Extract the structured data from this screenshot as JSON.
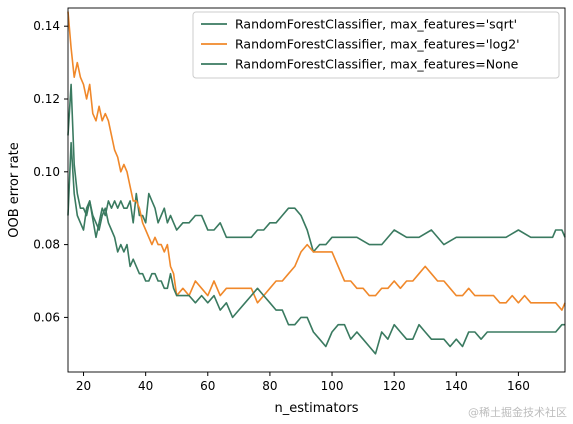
{
  "chart_data": {
    "type": "line",
    "xlabel": "n_estimators",
    "ylabel": "OOB error rate",
    "xlim": [
      15,
      175
    ],
    "ylim": [
      0.045,
      0.145
    ],
    "xticks": [
      20,
      40,
      60,
      80,
      100,
      120,
      140,
      160
    ],
    "yticks": [
      0.06,
      0.08,
      0.1,
      0.12,
      0.14
    ],
    "ytick_labels": [
      "0.06",
      "0.08",
      "0.10",
      "0.12",
      "0.14"
    ],
    "grid": false,
    "legend_position": "top-right",
    "series": [
      {
        "name": "RandomForestClassifier, max_features='sqrt'",
        "color": "#3a7a60",
        "x": [
          15,
          16,
          17,
          18,
          19,
          20,
          21,
          22,
          23,
          24,
          25,
          26,
          27,
          28,
          29,
          30,
          31,
          32,
          33,
          34,
          35,
          36,
          37,
          38,
          39,
          40,
          41,
          42,
          43,
          44,
          45,
          46,
          47,
          48,
          49,
          50,
          52,
          54,
          56,
          58,
          60,
          62,
          64,
          66,
          68,
          70,
          72,
          74,
          76,
          78,
          80,
          82,
          84,
          86,
          88,
          90,
          92,
          94,
          96,
          98,
          100,
          104,
          108,
          112,
          116,
          120,
          124,
          128,
          132,
          136,
          140,
          144,
          148,
          152,
          156,
          160,
          164,
          168,
          171,
          172,
          173,
          174,
          175
        ],
        "y": [
          0.088,
          0.108,
          0.094,
          0.088,
          0.086,
          0.084,
          0.09,
          0.092,
          0.087,
          0.082,
          0.086,
          0.09,
          0.088,
          0.092,
          0.09,
          0.092,
          0.09,
          0.092,
          0.09,
          0.09,
          0.092,
          0.086,
          0.094,
          0.088,
          0.088,
          0.086,
          0.094,
          0.092,
          0.09,
          0.086,
          0.088,
          0.09,
          0.086,
          0.088,
          0.086,
          0.084,
          0.086,
          0.086,
          0.088,
          0.088,
          0.084,
          0.084,
          0.086,
          0.082,
          0.082,
          0.082,
          0.082,
          0.082,
          0.084,
          0.084,
          0.086,
          0.086,
          0.088,
          0.09,
          0.09,
          0.088,
          0.084,
          0.078,
          0.08,
          0.08,
          0.082,
          0.082,
          0.082,
          0.08,
          0.08,
          0.084,
          0.082,
          0.082,
          0.084,
          0.08,
          0.082,
          0.082,
          0.082,
          0.082,
          0.082,
          0.084,
          0.082,
          0.082,
          0.082,
          0.084,
          0.084,
          0.084,
          0.082
        ]
      },
      {
        "name": "RandomForestClassifier, max_features='log2'",
        "color": "#f0882a",
        "x": [
          15,
          16,
          17,
          18,
          19,
          20,
          21,
          22,
          23,
          24,
          25,
          26,
          27,
          28,
          29,
          30,
          31,
          32,
          33,
          34,
          35,
          36,
          37,
          38,
          39,
          40,
          41,
          42,
          43,
          44,
          45,
          46,
          47,
          48,
          49,
          50,
          52,
          54,
          56,
          58,
          60,
          62,
          64,
          66,
          68,
          70,
          72,
          74,
          76,
          78,
          80,
          82,
          84,
          86,
          88,
          90,
          92,
          94,
          96,
          98,
          100,
          102,
          104,
          106,
          108,
          110,
          112,
          114,
          116,
          118,
          120,
          122,
          124,
          126,
          128,
          130,
          132,
          134,
          136,
          138,
          140,
          142,
          144,
          146,
          148,
          150,
          152,
          154,
          156,
          158,
          160,
          162,
          164,
          166,
          168,
          170,
          172,
          174,
          175
        ],
        "y": [
          0.144,
          0.134,
          0.126,
          0.13,
          0.126,
          0.124,
          0.12,
          0.124,
          0.116,
          0.114,
          0.118,
          0.114,
          0.116,
          0.114,
          0.11,
          0.106,
          0.104,
          0.1,
          0.102,
          0.1,
          0.096,
          0.092,
          0.092,
          0.09,
          0.086,
          0.084,
          0.082,
          0.08,
          0.082,
          0.08,
          0.08,
          0.078,
          0.08,
          0.074,
          0.072,
          0.066,
          0.068,
          0.066,
          0.07,
          0.068,
          0.066,
          0.07,
          0.066,
          0.068,
          0.068,
          0.068,
          0.068,
          0.068,
          0.064,
          0.066,
          0.068,
          0.07,
          0.07,
          0.072,
          0.074,
          0.078,
          0.08,
          0.078,
          0.078,
          0.078,
          0.078,
          0.074,
          0.07,
          0.07,
          0.068,
          0.068,
          0.066,
          0.066,
          0.068,
          0.068,
          0.07,
          0.068,
          0.07,
          0.07,
          0.072,
          0.074,
          0.072,
          0.07,
          0.07,
          0.068,
          0.066,
          0.066,
          0.068,
          0.066,
          0.066,
          0.066,
          0.066,
          0.064,
          0.064,
          0.066,
          0.064,
          0.066,
          0.064,
          0.064,
          0.064,
          0.064,
          0.064,
          0.062,
          0.064
        ]
      },
      {
        "name": "RandomForestClassifier, max_features=None",
        "color": "#3a7a60",
        "x": [
          15,
          16,
          17,
          18,
          19,
          20,
          21,
          22,
          23,
          24,
          25,
          26,
          27,
          28,
          29,
          30,
          31,
          32,
          33,
          34,
          35,
          36,
          37,
          38,
          39,
          40,
          41,
          42,
          43,
          44,
          45,
          46,
          47,
          48,
          49,
          50,
          52,
          54,
          56,
          58,
          60,
          62,
          64,
          66,
          68,
          70,
          72,
          74,
          76,
          78,
          80,
          82,
          84,
          86,
          88,
          90,
          92,
          94,
          96,
          98,
          100,
          102,
          104,
          106,
          108,
          110,
          112,
          114,
          116,
          118,
          120,
          122,
          124,
          126,
          128,
          130,
          132,
          134,
          136,
          138,
          140,
          142,
          144,
          146,
          148,
          150,
          152,
          154,
          156,
          158,
          160,
          162,
          164,
          166,
          168,
          170,
          172,
          174,
          175
        ],
        "y": [
          0.11,
          0.124,
          0.102,
          0.094,
          0.09,
          0.09,
          0.088,
          0.092,
          0.088,
          0.086,
          0.084,
          0.088,
          0.09,
          0.086,
          0.084,
          0.082,
          0.078,
          0.08,
          0.078,
          0.08,
          0.074,
          0.076,
          0.074,
          0.072,
          0.072,
          0.07,
          0.07,
          0.072,
          0.072,
          0.07,
          0.07,
          0.068,
          0.068,
          0.072,
          0.068,
          0.066,
          0.066,
          0.066,
          0.064,
          0.066,
          0.064,
          0.066,
          0.062,
          0.064,
          0.06,
          0.062,
          0.064,
          0.066,
          0.068,
          0.066,
          0.064,
          0.062,
          0.062,
          0.058,
          0.058,
          0.06,
          0.06,
          0.056,
          0.054,
          0.052,
          0.056,
          0.058,
          0.058,
          0.054,
          0.056,
          0.054,
          0.052,
          0.05,
          0.056,
          0.054,
          0.058,
          0.056,
          0.054,
          0.054,
          0.058,
          0.056,
          0.054,
          0.054,
          0.054,
          0.052,
          0.054,
          0.052,
          0.056,
          0.056,
          0.054,
          0.056,
          0.056,
          0.056,
          0.056,
          0.056,
          0.056,
          0.056,
          0.056,
          0.056,
          0.056,
          0.056,
          0.056,
          0.058,
          0.058
        ]
      }
    ]
  },
  "watermark": "@稀土掘金技术社区"
}
